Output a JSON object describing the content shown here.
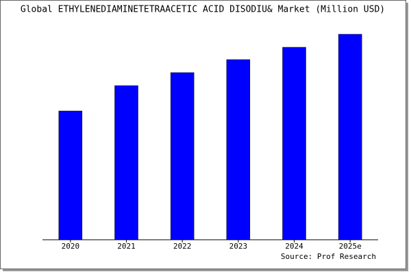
{
  "chart_data": {
    "type": "bar",
    "title": "Global ETHYLENEDIAMINETETRAACETIC ACID DISODIU& Market (Million USD)",
    "source": "Source: Prof Research",
    "categories": [
      "2020",
      "2021",
      "2022",
      "2023",
      "2024",
      "2025e"
    ],
    "values": [
      188,
      225,
      244,
      263,
      281,
      300
    ],
    "color": "#0000ff",
    "ylim": [
      0,
      302
    ]
  }
}
